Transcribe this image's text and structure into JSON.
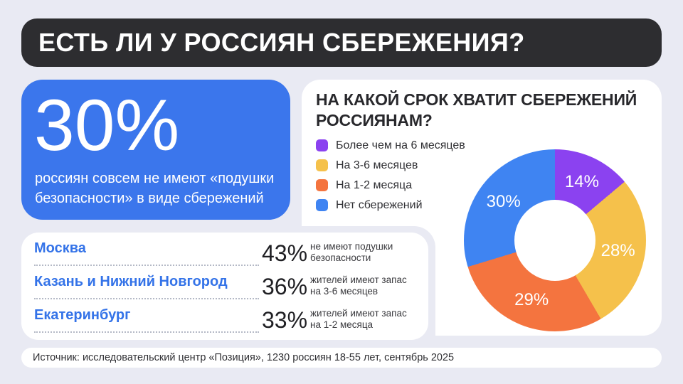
{
  "header": {
    "title": "ЕСТЬ ЛИ У РОССИЯН СБЕРЕЖЕНИЯ?"
  },
  "highlight_card": {
    "value": "30%",
    "description": "россиян совсем не имеют «подушки\nбезопасности» в виде сбережений",
    "background": "#3b76ec"
  },
  "chart_card": {
    "title": "НА КАКОЙ СРОК ХВАТИТ СБЕРЕЖЕНИЙ\nРОССИЯНАМ?",
    "legend": [
      {
        "label": "Более чем на 6 месяцев",
        "color": "#8b42f0"
      },
      {
        "label": "На 3-6 месяцев",
        "color": "#f5c14b"
      },
      {
        "label": "На 1-2 месяца",
        "color": "#f4743f"
      },
      {
        "label": "Нет сбережений",
        "color": "#3f84f2"
      }
    ]
  },
  "chart_data": {
    "type": "pie",
    "donut": true,
    "title": "НА КАКОЙ СРОК ХВАТИТ СБЕРЕЖЕНИЙ РОССИЯНАМ?",
    "categories": [
      "Более чем на 6 месяцев",
      "На 3-6 месяцев",
      "На 1-2 месяца",
      "Нет сбережений"
    ],
    "values": [
      14,
      28,
      29,
      30
    ],
    "labels": [
      "14%",
      "28%",
      "29%",
      "30%"
    ],
    "unit": "%",
    "colors": [
      "#8b42f0",
      "#f5c14b",
      "#f4743f",
      "#3f84f2"
    ],
    "start_angle_deg": 0,
    "direction": "clockwise",
    "legend_position": "left"
  },
  "cities_card": {
    "rows": [
      {
        "city": "Москва",
        "value": "43%",
        "note": "не имеют подушки\nбезопасности"
      },
      {
        "city": "Казань и Нижний Новгород",
        "value": "36%",
        "note": "жителей имеют запас\nна 3-6 месяцев"
      },
      {
        "city": "Екатеринбург",
        "value": "33%",
        "note": "жителей имеют запас\nна 1-2 месяца"
      }
    ],
    "accent_color": "#3473e8"
  },
  "footer": {
    "source": "Источник: исследовательский центр «Позиция», 1230 россиян 18-55 лет, сентябрь 2025"
  },
  "colors": {
    "background": "#e9eaf3",
    "header_bg": "#2d2d30",
    "card_bg": "#ffffff"
  }
}
